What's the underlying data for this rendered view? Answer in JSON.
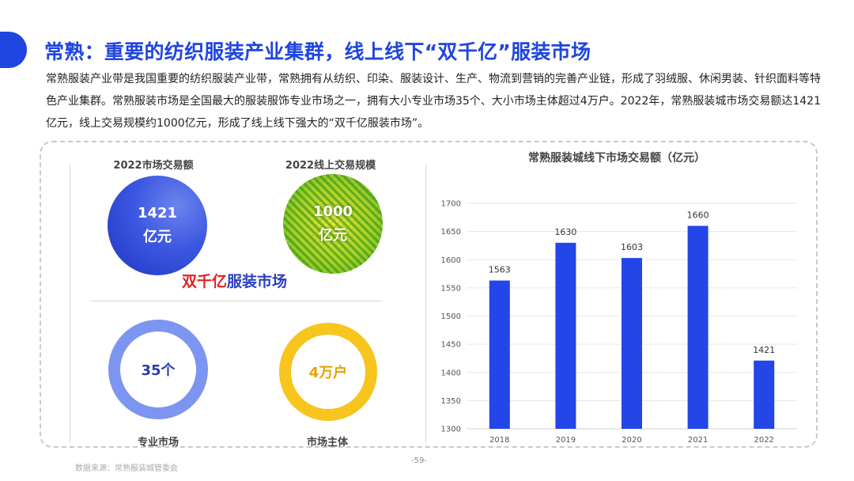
{
  "page": {
    "title": "常熟：重要的纺织服装产业集群，线上线下“双千亿”服装市场",
    "intro": "常熟服装产业带是我国重要的纺织服装产业带，常熟拥有从纺织、印染、服装设计、生产、物流到营销的完善产业链，形成了羽绒服、休闲男装、针织面料等特色产业集群。常熟服装市场是全国最大的服装服饰专业市场之一，拥有大小专业市场35个、大小市场主体超过4万户。2022年，常熟服装城市场交易额达1421亿元，线上交易规模约1000亿元，形成了线上线下强大的“双千亿服装市场”。",
    "page_number": "-59-",
    "source": "数据来源：常熟服装城管委会"
  },
  "stats": {
    "trade_label": "2022市场交易额",
    "trade_value": "1421",
    "trade_unit": "亿元",
    "online_label": "2022线上交易规模",
    "online_value": "1000",
    "online_unit": "亿元",
    "slogan_red": "双千亿",
    "slogan_blue": "服装市场",
    "markets_value": "35个",
    "markets_label": "专业市场",
    "entities_value": "4万户",
    "entities_label": "市场主体"
  },
  "colors": {
    "accent": "#1f45e0",
    "bar": "#2445e8",
    "ring_blue": "#7c95f0",
    "ring_yellow": "#f7c51e",
    "slogan_red": "#e02020"
  },
  "chart_data": {
    "type": "bar",
    "title": "常熟服装城线下市场交易额（亿元）",
    "categories": [
      "2018",
      "2019",
      "2020",
      "2021",
      "2022"
    ],
    "values": [
      1563,
      1630,
      1603,
      1660,
      1421
    ],
    "ylim": [
      1300,
      1700
    ],
    "yticks": [
      1300,
      1350,
      1400,
      1450,
      1500,
      1550,
      1600,
      1650,
      1700
    ],
    "grid": true,
    "data_labels": true
  }
}
